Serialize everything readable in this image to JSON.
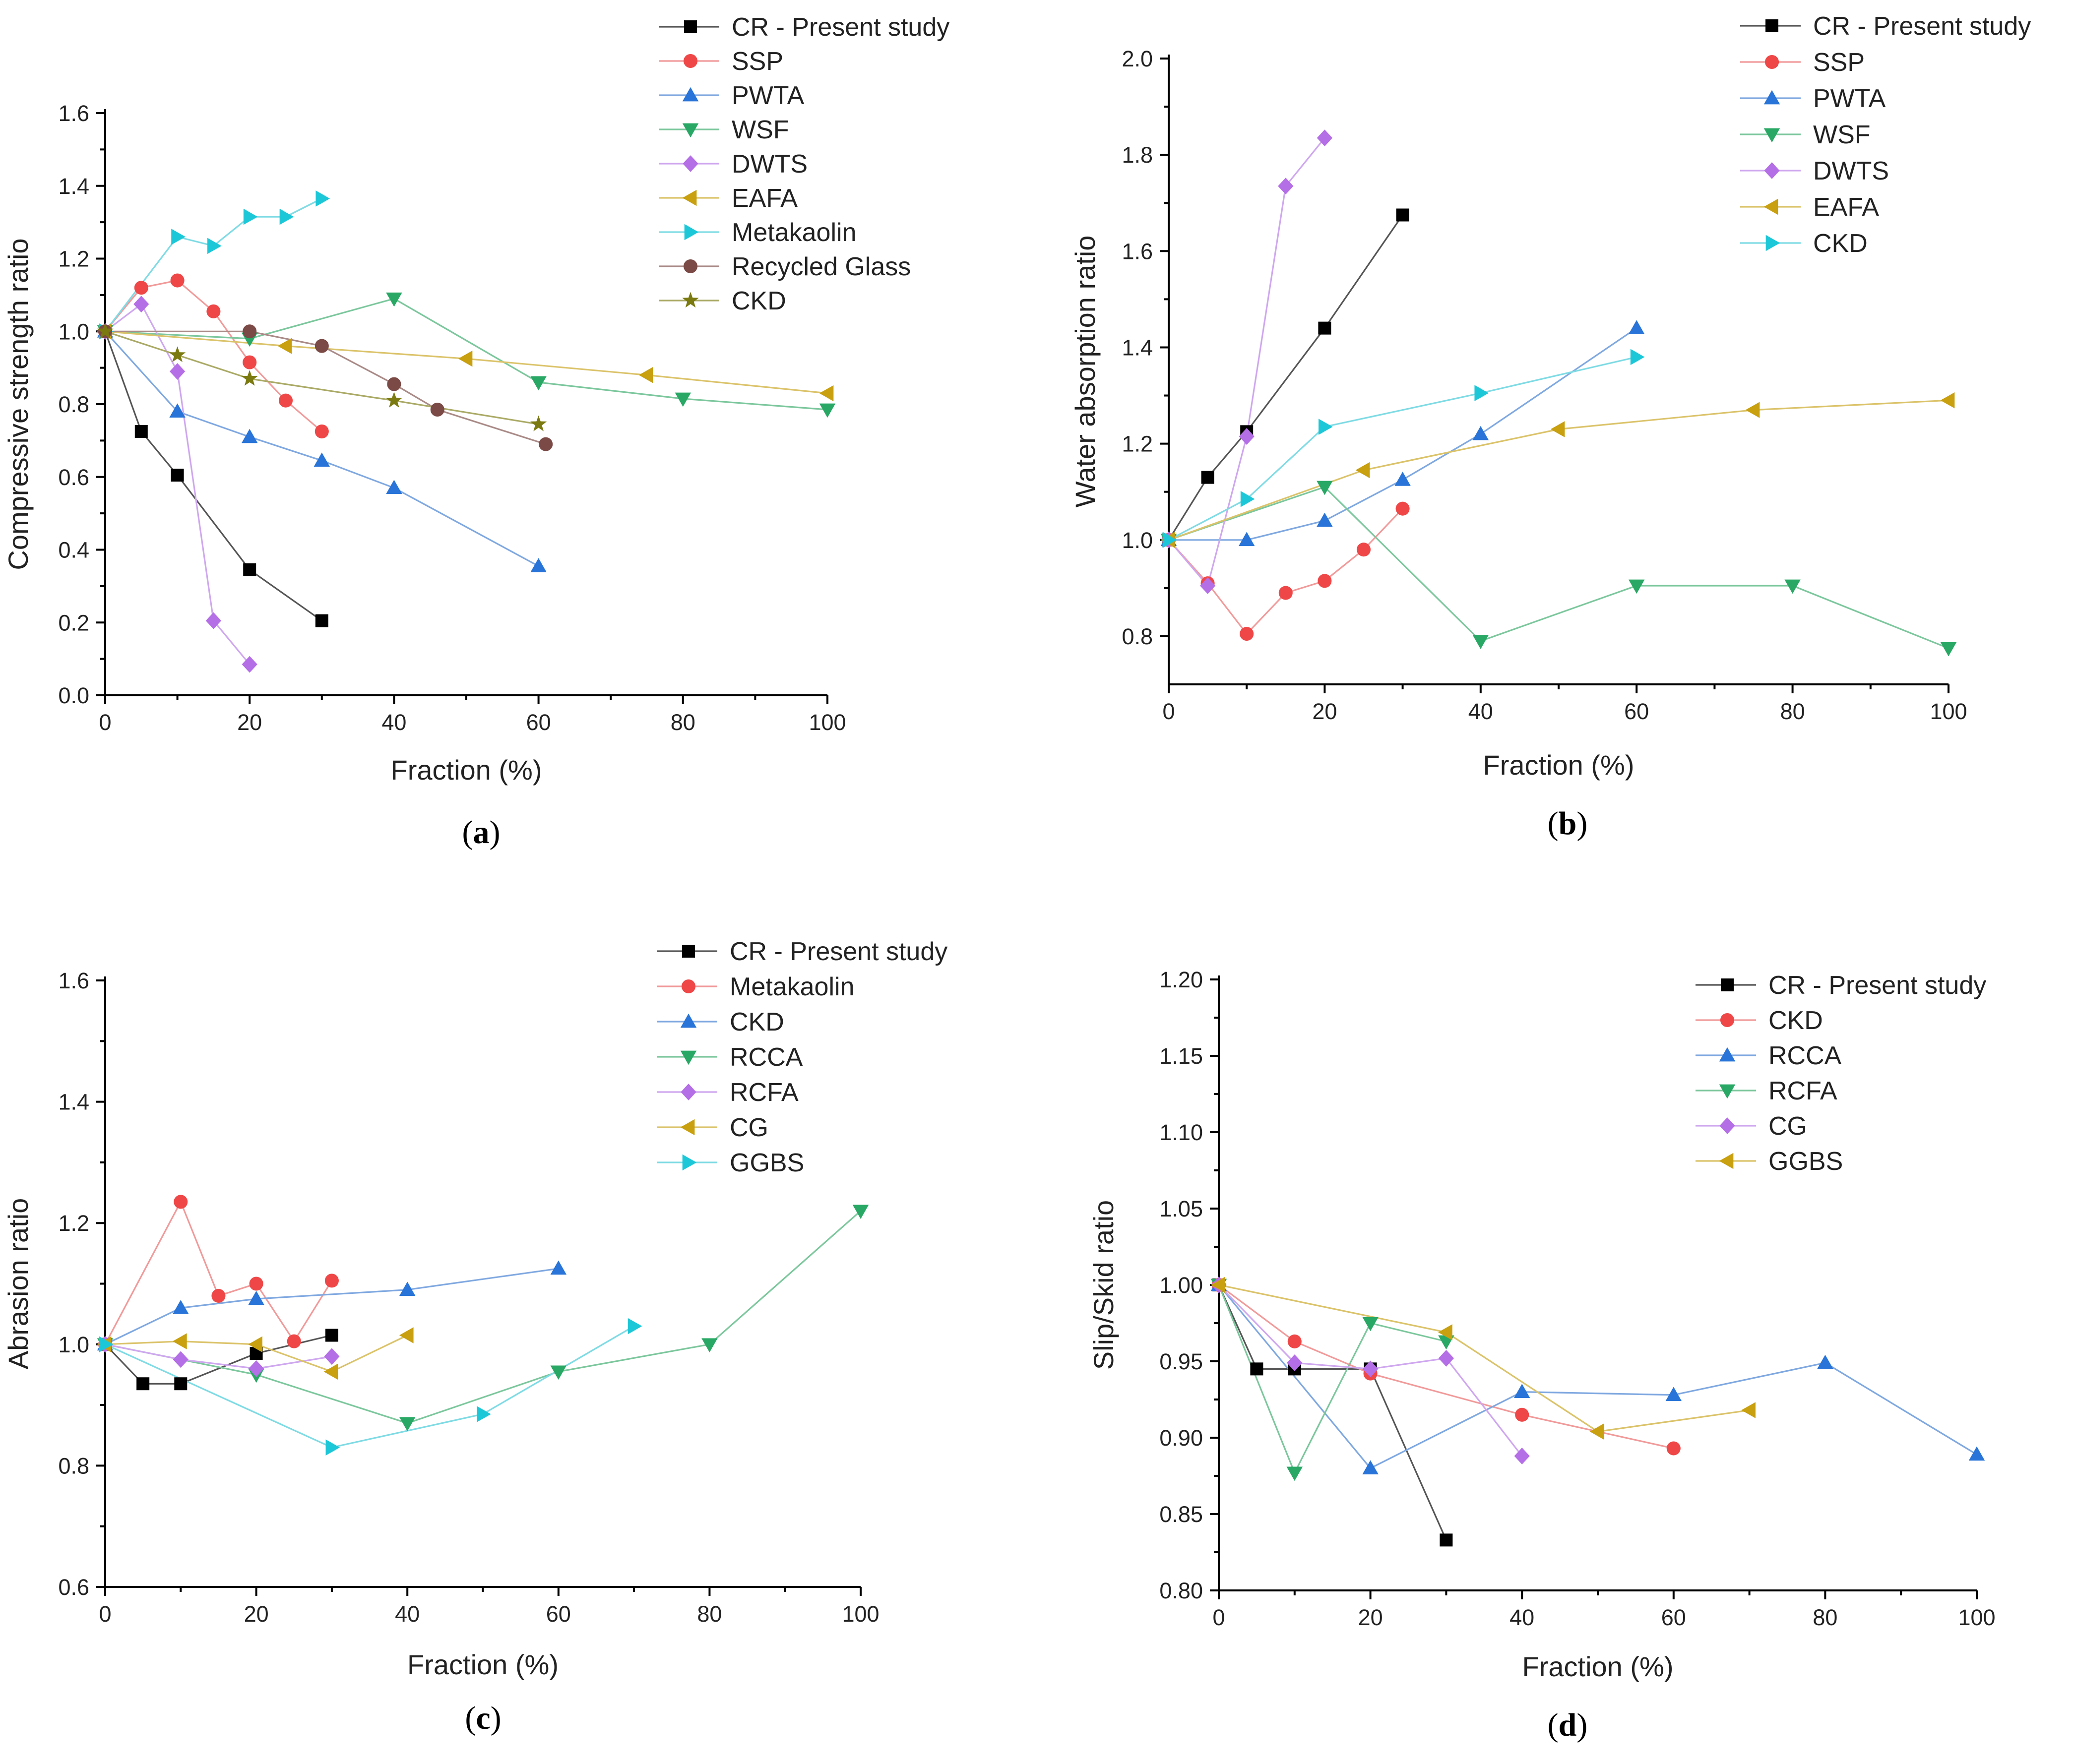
{
  "chart_data": [
    {
      "type": "line",
      "panel_label": "a",
      "xlabel": "Fraction (%)",
      "ylabel": "Compressive strength ratio",
      "xlim": [
        0,
        100
      ],
      "ylim": [
        0,
        1.6
      ],
      "xticks": [
        0,
        20,
        40,
        60,
        80,
        100
      ],
      "yticks": [
        0.0,
        0.2,
        0.4,
        0.6,
        0.8,
        1.0,
        1.2,
        1.4,
        1.6
      ],
      "ytick_decimals": 1,
      "series": [
        {
          "name": "CR - Present study",
          "marker": "square",
          "color": "#000000",
          "line_color": "#555555",
          "x": [
            0,
            5,
            10,
            20,
            30
          ],
          "y": [
            1.0,
            0.725,
            0.605,
            0.345,
            0.205
          ]
        },
        {
          "name": "SSP",
          "marker": "circle",
          "color": "#ef4747",
          "line_color": "#f19a9a",
          "x": [
            0,
            5,
            10,
            15,
            20,
            25,
            30
          ],
          "y": [
            1.0,
            1.12,
            1.14,
            1.055,
            0.915,
            0.81,
            0.725
          ]
        },
        {
          "name": "PWTA",
          "marker": "triangle-up",
          "color": "#2874d8",
          "line_color": "#7fa8e0",
          "x": [
            0,
            10,
            20,
            30,
            40,
            60
          ],
          "y": [
            1.0,
            0.78,
            0.71,
            0.645,
            0.57,
            0.355
          ]
        },
        {
          "name": "WSF",
          "marker": "triangle-down",
          "color": "#28a864",
          "line_color": "#7cc79d",
          "x": [
            0,
            20,
            40,
            60,
            80,
            100
          ],
          "y": [
            1.0,
            0.98,
            1.09,
            0.86,
            0.815,
            0.785
          ]
        },
        {
          "name": "DWTS",
          "marker": "diamond",
          "color": "#b46ee6",
          "line_color": "#cfa7ef",
          "x": [
            0,
            5,
            10,
            15,
            20
          ],
          "y": [
            1.0,
            1.075,
            0.89,
            0.205,
            0.085
          ]
        },
        {
          "name": "EAFA",
          "marker": "triangle-left",
          "color": "#c8a010",
          "line_color": "#dbc36a",
          "x": [
            0,
            25,
            50,
            75,
            100
          ],
          "y": [
            1.0,
            0.96,
            0.925,
            0.88,
            0.83
          ]
        },
        {
          "name": "Metakaolin",
          "marker": "triangle-right",
          "color": "#1cc8d8",
          "line_color": "#7fdbe4",
          "x": [
            0,
            10,
            15,
            20,
            25,
            30
          ],
          "y": [
            1.0,
            1.26,
            1.235,
            1.315,
            1.315,
            1.365
          ]
        },
        {
          "name": "Recycled Glass",
          "marker": "circle",
          "color": "#7b4a46",
          "line_color": "#a98a87",
          "x": [
            0,
            20,
            30,
            40,
            46,
            61
          ],
          "y": [
            1.0,
            1.0,
            0.96,
            0.855,
            0.785,
            0.69
          ]
        },
        {
          "name": "CKD",
          "marker": "star",
          "color": "#7a7a10",
          "line_color": "#aaaa66",
          "x": [
            0,
            10,
            20,
            40,
            60
          ],
          "y": [
            1.0,
            0.935,
            0.87,
            0.81,
            0.745
          ]
        }
      ]
    },
    {
      "type": "line",
      "panel_label": "b",
      "xlabel": "Fraction (%)",
      "ylabel": "Water absorption ratio",
      "xlim": [
        0,
        100
      ],
      "ylim": [
        0.7,
        2.0
      ],
      "xticks": [
        0,
        20,
        40,
        60,
        80,
        100
      ],
      "yticks": [
        0.8,
        1.0,
        1.2,
        1.4,
        1.6,
        1.8,
        2.0
      ],
      "ytick_decimals": 1,
      "series": [
        {
          "name": "CR - Present study",
          "marker": "square",
          "color": "#000000",
          "line_color": "#555555",
          "x": [
            0,
            5,
            10,
            20,
            30
          ],
          "y": [
            1.0,
            1.13,
            1.225,
            1.44,
            1.675
          ]
        },
        {
          "name": "SSP",
          "marker": "circle",
          "color": "#ef4747",
          "line_color": "#f19a9a",
          "x": [
            0,
            5,
            10,
            15,
            20,
            25,
            30
          ],
          "y": [
            1.0,
            0.91,
            0.805,
            0.89,
            0.915,
            0.98,
            1.065
          ]
        },
        {
          "name": "PWTA",
          "marker": "triangle-up",
          "color": "#2874d8",
          "line_color": "#7fa8e0",
          "x": [
            0,
            10,
            20,
            30,
            40,
            60
          ],
          "y": [
            1.0,
            1.0,
            1.04,
            1.125,
            1.22,
            1.44
          ]
        },
        {
          "name": "WSF",
          "marker": "triangle-down",
          "color": "#28a864",
          "line_color": "#7cc79d",
          "x": [
            0,
            20,
            40,
            60,
            80,
            100
          ],
          "y": [
            1.0,
            1.11,
            0.79,
            0.905,
            0.905,
            0.775
          ]
        },
        {
          "name": "DWTS",
          "marker": "diamond",
          "color": "#b46ee6",
          "line_color": "#cfa7ef",
          "x": [
            0,
            5,
            10,
            15,
            20
          ],
          "y": [
            1.0,
            0.905,
            1.215,
            1.735,
            1.835
          ]
        },
        {
          "name": "EAFA",
          "marker": "triangle-left",
          "color": "#c8a010",
          "line_color": "#dbc36a",
          "x": [
            0,
            25,
            50,
            75,
            100
          ],
          "y": [
            1.0,
            1.145,
            1.23,
            1.27,
            1.29
          ]
        },
        {
          "name": "CKD",
          "marker": "triangle-right",
          "color": "#1cc8d8",
          "line_color": "#7fdbe4",
          "x": [
            0,
            10,
            20,
            40,
            60
          ],
          "y": [
            1.0,
            1.085,
            1.235,
            1.305,
            1.38
          ]
        }
      ]
    },
    {
      "type": "line",
      "panel_label": "c",
      "xlabel": "Fraction (%)",
      "ylabel": "Abrasion ratio",
      "xlim": [
        0,
        100
      ],
      "ylim": [
        0.6,
        1.6
      ],
      "xticks": [
        0,
        20,
        40,
        60,
        80,
        100
      ],
      "yticks": [
        0.6,
        0.8,
        1.0,
        1.2,
        1.4,
        1.6
      ],
      "ytick_decimals": 1,
      "series": [
        {
          "name": "CR - Present study",
          "marker": "square",
          "color": "#000000",
          "line_color": "#555555",
          "x": [
            0,
            5,
            10,
            20,
            30
          ],
          "y": [
            1.0,
            0.935,
            0.935,
            0.985,
            1.015
          ]
        },
        {
          "name": "Metakaolin",
          "marker": "circle",
          "color": "#ef4747",
          "line_color": "#f19a9a",
          "x": [
            0,
            10,
            15,
            20,
            25,
            30
          ],
          "y": [
            1.0,
            1.235,
            1.08,
            1.1,
            1.005,
            1.105
          ]
        },
        {
          "name": "CKD",
          "marker": "triangle-up",
          "color": "#2874d8",
          "line_color": "#7fa8e0",
          "x": [
            0,
            10,
            20,
            40,
            60
          ],
          "y": [
            1.0,
            1.06,
            1.075,
            1.09,
            1.125
          ]
        },
        {
          "name": "RCCA",
          "marker": "triangle-down",
          "color": "#28a864",
          "line_color": "#7cc79d",
          "x": [
            0,
            20,
            40,
            60,
            80,
            100
          ],
          "y": [
            1.0,
            0.95,
            0.87,
            0.955,
            1.0,
            1.22
          ]
        },
        {
          "name": "RCFA",
          "marker": "diamond",
          "color": "#b46ee6",
          "line_color": "#cfa7ef",
          "x": [
            0,
            10,
            20,
            30
          ],
          "y": [
            1.0,
            0.975,
            0.96,
            0.98
          ]
        },
        {
          "name": "CG",
          "marker": "triangle-left",
          "color": "#c8a010",
          "line_color": "#dbc36a",
          "x": [
            0,
            10,
            20,
            30,
            40
          ],
          "y": [
            1.0,
            1.005,
            1.0,
            0.955,
            1.015
          ]
        },
        {
          "name": "GGBS",
          "marker": "triangle-right",
          "color": "#1cc8d8",
          "line_color": "#7fdbe4",
          "x": [
            0,
            30,
            50,
            70
          ],
          "y": [
            1.0,
            0.83,
            0.885,
            1.03
          ]
        }
      ]
    },
    {
      "type": "line",
      "panel_label": "d",
      "xlabel": "Fraction (%)",
      "ylabel": "Slip/Skid ratio",
      "xlim": [
        0,
        100
      ],
      "ylim": [
        0.8,
        1.2
      ],
      "xticks": [
        0,
        20,
        40,
        60,
        80,
        100
      ],
      "yticks": [
        0.8,
        0.85,
        0.9,
        0.95,
        1.0,
        1.05,
        1.1,
        1.15,
        1.2
      ],
      "ytick_decimals": 2,
      "series": [
        {
          "name": "CR - Present study",
          "marker": "square",
          "color": "#000000",
          "line_color": "#555555",
          "x": [
            0,
            5,
            10,
            20,
            30
          ],
          "y": [
            1.0,
            0.945,
            0.945,
            0.945,
            0.833
          ]
        },
        {
          "name": "CKD",
          "marker": "circle",
          "color": "#ef4747",
          "line_color": "#f19a9a",
          "x": [
            0,
            10,
            20,
            40,
            60
          ],
          "y": [
            1.0,
            0.963,
            0.942,
            0.915,
            0.893
          ]
        },
        {
          "name": "RCCA",
          "marker": "triangle-up",
          "color": "#2874d8",
          "line_color": "#7fa8e0",
          "x": [
            0,
            20,
            40,
            60,
            80,
            100
          ],
          "y": [
            1.0,
            0.88,
            0.93,
            0.928,
            0.949,
            0.889
          ]
        },
        {
          "name": "RCFA",
          "marker": "triangle-down",
          "color": "#28a864",
          "line_color": "#7cc79d",
          "x": [
            0,
            10,
            20,
            30
          ],
          "y": [
            1.0,
            0.877,
            0.975,
            0.963
          ]
        },
        {
          "name": "CG",
          "marker": "diamond",
          "color": "#b46ee6",
          "line_color": "#cfa7ef",
          "x": [
            0,
            10,
            20,
            30,
            40
          ],
          "y": [
            1.0,
            0.949,
            0.945,
            0.952,
            0.888
          ]
        },
        {
          "name": "GGBS",
          "marker": "triangle-left",
          "color": "#c8a010",
          "line_color": "#dbc36a",
          "x": [
            0,
            30,
            50,
            70
          ],
          "y": [
            1.0,
            0.969,
            0.904,
            0.918
          ]
        }
      ]
    }
  ]
}
